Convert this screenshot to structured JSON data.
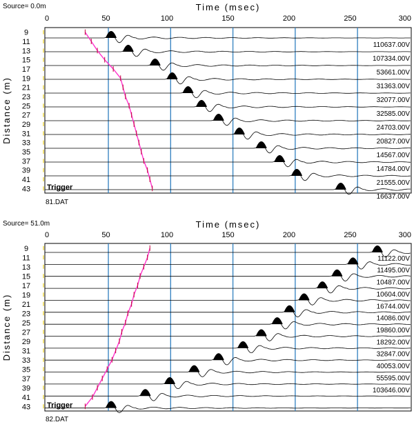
{
  "colors": {
    "grid_line": "#2f7fbf",
    "pick_line": "#ff33cc",
    "trace": "#000000",
    "frame": "#000000",
    "axis_text": "#000000",
    "y_tick_marker": "#f2e27a"
  },
  "chart_data": [
    {
      "type": "line",
      "title": "Time (msec)",
      "source_label": "Source=  0.0m",
      "file_label": "81.DAT",
      "trigger_label": "Trigger",
      "xlabel": "Time (msec)",
      "ylabel": "Distance (m)",
      "xlim": [
        0,
        300
      ],
      "x_ticks": [
        0,
        50,
        100,
        150,
        200,
        250,
        300
      ],
      "x_tick_labels": [
        "0",
        "50",
        "100",
        "150",
        "200",
        "250",
        "300"
      ],
      "vertical_gridlines": [
        52,
        103,
        154,
        205,
        256
      ],
      "y_ticks": [
        9,
        11,
        13,
        15,
        17,
        19,
        21,
        23,
        25,
        27,
        29,
        31,
        33,
        35,
        37,
        39,
        41,
        43
      ],
      "y_tick_labels": [
        "9",
        "11",
        "13",
        "15",
        "17",
        "19",
        "21",
        "23",
        "25",
        "27",
        "29",
        "31",
        "33",
        "35",
        "37",
        "39",
        "41",
        "43"
      ],
      "gain_labels": [
        "110637.00V",
        "107334.00V",
        "53661.00V",
        "31363.00V",
        "32077.00V",
        "32585.00V",
        "24703.00V",
        "20827.00V",
        "14567.00V",
        "14784.00V",
        "21555.00V",
        "16637.00V"
      ],
      "first_arrival_picks": [
        {
          "distance": 9,
          "time": 33
        },
        {
          "distance": 11,
          "time": 38
        },
        {
          "distance": 13,
          "time": 43
        },
        {
          "distance": 15,
          "time": 49
        },
        {
          "distance": 17,
          "time": 56
        },
        {
          "distance": 19,
          "time": 62
        },
        {
          "distance": 21,
          "time": 64
        },
        {
          "distance": 23,
          "time": 66
        },
        {
          "distance": 25,
          "time": 69
        },
        {
          "distance": 27,
          "time": 71
        },
        {
          "distance": 29,
          "time": 73
        },
        {
          "distance": 31,
          "time": 75
        },
        {
          "distance": 33,
          "time": 77
        },
        {
          "distance": 35,
          "time": 79
        },
        {
          "distance": 37,
          "time": 81
        },
        {
          "distance": 39,
          "time": 84
        },
        {
          "distance": 41,
          "time": 86
        },
        {
          "distance": 43,
          "time": 88
        }
      ],
      "series_arrival_times": [
        52,
        66,
        88,
        102,
        115,
        126,
        140,
        157,
        175,
        190,
        204,
        240
      ]
    },
    {
      "type": "line",
      "title": "Time (msec)",
      "source_label": "Source= 51.0m",
      "file_label": "82.DAT",
      "trigger_label": "Trigger",
      "xlabel": "Time (msec)",
      "ylabel": "Distance (m)",
      "xlim": [
        0,
        300
      ],
      "x_ticks": [
        0,
        50,
        100,
        150,
        200,
        250,
        300
      ],
      "x_tick_labels": [
        "0",
        "50",
        "100",
        "150",
        "200",
        "250",
        "300"
      ],
      "vertical_gridlines": [
        52,
        103,
        154,
        205,
        256
      ],
      "y_ticks": [
        9,
        11,
        13,
        15,
        17,
        19,
        21,
        23,
        25,
        27,
        29,
        31,
        33,
        35,
        37,
        39,
        41,
        43
      ],
      "y_tick_labels": [
        "9",
        "11",
        "13",
        "15",
        "17",
        "19",
        "21",
        "23",
        "25",
        "27",
        "29",
        "31",
        "33",
        "35",
        "37",
        "39",
        "41",
        "43"
      ],
      "gain_labels": [
        "11122.00V",
        "11495.00V",
        "10487.00V",
        "10604.00V",
        "16744.00V",
        "14086.00V",
        "19860.00V",
        "18292.00V",
        "32847.00V",
        "40053.00V",
        "55595.00V",
        "103646.00V"
      ],
      "first_arrival_picks": [
        {
          "distance": 9,
          "time": 86
        },
        {
          "distance": 11,
          "time": 84
        },
        {
          "distance": 13,
          "time": 81
        },
        {
          "distance": 15,
          "time": 78
        },
        {
          "distance": 17,
          "time": 76
        },
        {
          "distance": 19,
          "time": 73
        },
        {
          "distance": 21,
          "time": 71
        },
        {
          "distance": 23,
          "time": 68
        },
        {
          "distance": 25,
          "time": 66
        },
        {
          "distance": 27,
          "time": 63
        },
        {
          "distance": 29,
          "time": 61
        },
        {
          "distance": 31,
          "time": 58
        },
        {
          "distance": 33,
          "time": 55
        },
        {
          "distance": 35,
          "time": 51
        },
        {
          "distance": 37,
          "time": 47
        },
        {
          "distance": 39,
          "time": 43
        },
        {
          "distance": 41,
          "time": 39
        },
        {
          "distance": 43,
          "time": 33
        }
      ],
      "series_arrival_times": [
        270,
        250,
        237,
        225,
        210,
        198,
        188,
        175,
        160,
        140,
        120,
        100,
        80,
        52
      ]
    }
  ]
}
